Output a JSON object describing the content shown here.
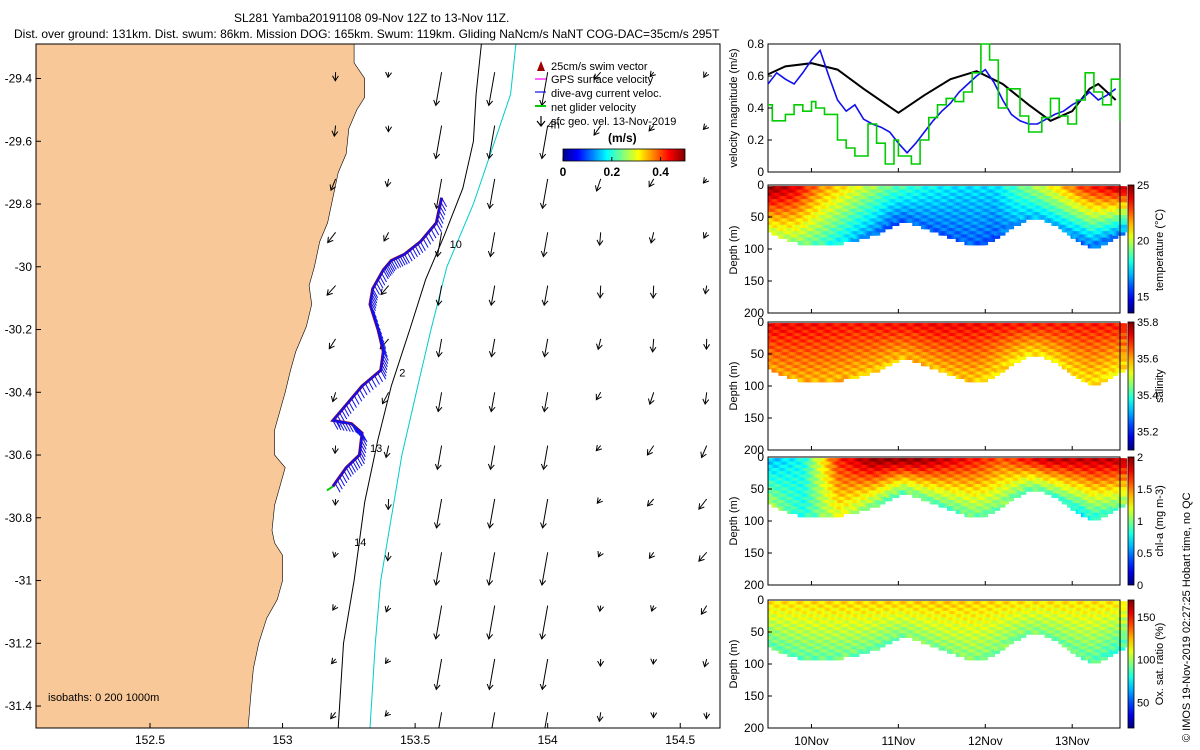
{
  "title": {
    "line1": "SL281 Yamba20191108 09-Nov 12Z to 13-Nov 11Z.",
    "line2": "Dist. over ground: 131km. Dist. swum: 86km. Mission DOG: 165km. Swum: 119km. Gliding NaNcm/s NaNT COG-DAC=35cm/s 295T"
  },
  "colors": {
    "land": "#f8c898",
    "glider_track": "#1010ee",
    "swim_vector": "#a00000",
    "gps_velocity": "#ff00ff",
    "net_velocity": "#00cc00",
    "isobath_200": "#000000",
    "isobath_1000": "#00cccc"
  },
  "icons": {
    "geo_arrow": "arrow-icon"
  },
  "chart_data": [
    {
      "id": "map",
      "type": "map",
      "xlim": [
        152.07,
        154.65
      ],
      "ylim": [
        -31.47,
        -29.29
      ],
      "xticks": [
        152.5,
        153,
        153.5,
        154,
        154.5
      ],
      "xtick_labels": [
        "152.5",
        "153",
        "153.5",
        "154",
        "154.5"
      ],
      "yticks": [
        -29.4,
        -29.6,
        -29.8,
        -30,
        -30.2,
        -30.4,
        -30.6,
        -30.8,
        -31,
        -31.2,
        -31.4
      ],
      "ytick_labels": [
        "-29.4",
        "-29.6",
        "-29.8",
        "-30",
        "-30.2",
        "-30.4",
        "-30.6",
        "-30.8",
        "-31",
        "-31.2",
        "-31.4"
      ],
      "legend": [
        {
          "label": "25cm/s swim vector",
          "kind": "swim"
        },
        {
          "label": "GPS surface velocity",
          "kind": "gps"
        },
        {
          "label": "dive-avg current veloc.",
          "kind": "dac"
        },
        {
          "label": "net glider velocity",
          "kind": "net"
        },
        {
          "label": "sfc geo. vel. 13-Nov-2019",
          "kind": "geo"
        }
      ],
      "colorbar": {
        "unit": "(m/s)",
        "ticks": [
          0,
          0.2,
          0.4
        ],
        "tick_labels": [
          "0",
          "0.2",
          "0.4"
        ],
        "range": [
          0,
          0.5
        ]
      },
      "isobaths_label": "isobaths: 0   200   1000m",
      "day_labels": [
        {
          "text": "4h",
          "lon": 154.0,
          "lat": -29.56
        },
        {
          "text": "10",
          "lon": 153.63,
          "lat": -29.94
        },
        {
          "text": "2",
          "lon": 153.44,
          "lat": -30.35
        },
        {
          "text": "13",
          "lon": 153.33,
          "lat": -30.59
        },
        {
          "text": "14",
          "lon": 153.27,
          "lat": -30.89
        }
      ],
      "track": [
        [
          153.6,
          -29.78
        ],
        [
          153.58,
          -29.86
        ],
        [
          153.52,
          -29.92
        ],
        [
          153.46,
          -29.96
        ],
        [
          153.41,
          -29.98
        ],
        [
          153.38,
          -30.01
        ],
        [
          153.34,
          -30.07
        ],
        [
          153.33,
          -30.12
        ],
        [
          153.36,
          -30.2
        ],
        [
          153.38,
          -30.27
        ],
        [
          153.37,
          -30.33
        ],
        [
          153.3,
          -30.38
        ],
        [
          153.24,
          -30.44
        ],
        [
          153.19,
          -30.49
        ],
        [
          153.26,
          -30.5
        ],
        [
          153.3,
          -30.53
        ],
        [
          153.29,
          -30.6
        ],
        [
          153.24,
          -30.64
        ],
        [
          153.19,
          -30.7
        ]
      ],
      "iso200": [
        [
          153.75,
          -29.29
        ],
        [
          153.73,
          -29.45
        ],
        [
          153.72,
          -29.6
        ],
        [
          153.68,
          -29.75
        ],
        [
          153.61,
          -29.9
        ],
        [
          153.54,
          -30.04
        ],
        [
          153.48,
          -30.2
        ],
        [
          153.41,
          -30.38
        ],
        [
          153.36,
          -30.55
        ],
        [
          153.31,
          -30.75
        ],
        [
          153.27,
          -31.0
        ],
        [
          153.23,
          -31.2
        ],
        [
          153.21,
          -31.47
        ]
      ],
      "iso1000": [
        [
          153.88,
          -29.29
        ],
        [
          153.86,
          -29.45
        ],
        [
          153.8,
          -29.6
        ],
        [
          153.72,
          -29.8
        ],
        [
          153.62,
          -30.0
        ],
        [
          153.56,
          -30.2
        ],
        [
          153.51,
          -30.38
        ],
        [
          153.45,
          -30.6
        ],
        [
          153.41,
          -30.8
        ],
        [
          153.37,
          -31.0
        ],
        [
          153.35,
          -31.2
        ],
        [
          153.33,
          -31.47
        ]
      ],
      "coast": [
        [
          152.07,
          -29.29
        ],
        [
          153.27,
          -29.29
        ],
        [
          153.27,
          -29.35
        ],
        [
          153.31,
          -29.4
        ],
        [
          153.31,
          -29.46
        ],
        [
          153.28,
          -29.5
        ],
        [
          153.25,
          -29.56
        ],
        [
          153.24,
          -29.64
        ],
        [
          153.21,
          -29.7
        ],
        [
          153.19,
          -29.78
        ],
        [
          153.17,
          -29.86
        ],
        [
          153.14,
          -29.92
        ],
        [
          153.12,
          -30.0
        ],
        [
          153.1,
          -30.06
        ],
        [
          153.11,
          -30.12
        ],
        [
          153.09,
          -30.19
        ],
        [
          153.05,
          -30.27
        ],
        [
          153.03,
          -30.33
        ],
        [
          153.01,
          -30.4
        ],
        [
          152.99,
          -30.46
        ],
        [
          152.97,
          -30.52
        ],
        [
          152.97,
          -30.6
        ],
        [
          153.01,
          -30.64
        ],
        [
          152.99,
          -30.7
        ],
        [
          152.97,
          -30.76
        ],
        [
          152.96,
          -30.84
        ],
        [
          152.97,
          -30.88
        ],
        [
          153.0,
          -30.92
        ],
        [
          153.0,
          -31.0
        ],
        [
          152.98,
          -31.06
        ],
        [
          152.94,
          -31.12
        ],
        [
          152.91,
          -31.2
        ],
        [
          152.89,
          -31.28
        ],
        [
          152.88,
          -31.37
        ],
        [
          152.87,
          -31.47
        ],
        [
          152.07,
          -31.47
        ]
      ]
    },
    {
      "id": "velocity",
      "type": "line",
      "ylabel": "velocity magnitude (m/s)",
      "ylim": [
        0,
        0.8
      ],
      "yticks": [
        0,
        0.2,
        0.4,
        0.6,
        0.8
      ],
      "ytick_labels": [
        "0",
        "0.2",
        "0.4",
        "0.6",
        "0.8"
      ],
      "xlim": [
        9.5,
        13.55
      ],
      "series": [
        {
          "name": "black",
          "color": "#000000",
          "x": [
            9.5,
            9.7,
            10.0,
            10.3,
            10.6,
            11.0,
            11.3,
            11.6,
            11.9,
            12.2,
            12.5,
            12.75,
            13.0,
            13.2,
            13.3,
            13.5
          ],
          "y": [
            0.61,
            0.66,
            0.68,
            0.64,
            0.52,
            0.37,
            0.48,
            0.58,
            0.63,
            0.55,
            0.42,
            0.32,
            0.38,
            0.52,
            0.55,
            0.45
          ]
        },
        {
          "name": "blue",
          "color": "#1010ee",
          "x": [
            9.5,
            9.6,
            9.7,
            9.8,
            9.9,
            10.0,
            10.1,
            10.2,
            10.3,
            10.4,
            10.5,
            10.6,
            10.7,
            10.8,
            10.9,
            11.0,
            11.1,
            11.2,
            11.3,
            11.4,
            11.5,
            11.6,
            11.7,
            11.8,
            11.9,
            12.0,
            12.1,
            12.2,
            12.3,
            12.4,
            12.5,
            12.6,
            12.7,
            12.8,
            12.9,
            13.0,
            13.1,
            13.2,
            13.3,
            13.4,
            13.5
          ],
          "y": [
            0.55,
            0.62,
            0.58,
            0.55,
            0.62,
            0.7,
            0.76,
            0.6,
            0.45,
            0.38,
            0.42,
            0.33,
            0.3,
            0.28,
            0.25,
            0.18,
            0.12,
            0.18,
            0.25,
            0.32,
            0.38,
            0.43,
            0.5,
            0.55,
            0.6,
            0.64,
            0.56,
            0.45,
            0.36,
            0.32,
            0.3,
            0.3,
            0.33,
            0.36,
            0.38,
            0.42,
            0.45,
            0.5,
            0.45,
            0.48,
            0.52
          ]
        },
        {
          "name": "green",
          "step": true,
          "color": "#00cc00",
          "x": [
            9.5,
            9.55,
            9.7,
            9.8,
            9.9,
            10.0,
            10.05,
            10.15,
            10.3,
            10.4,
            10.5,
            10.65,
            10.75,
            10.85,
            10.95,
            11.0,
            11.15,
            11.25,
            11.35,
            11.45,
            11.55,
            11.65,
            11.75,
            11.85,
            11.95,
            12.05,
            12.15,
            12.25,
            12.4,
            12.5,
            12.65,
            12.75,
            12.85,
            12.95,
            13.05,
            13.15,
            13.25,
            13.35,
            13.45,
            13.55
          ],
          "y": [
            0.42,
            0.32,
            0.36,
            0.42,
            0.38,
            0.44,
            0.4,
            0.36,
            0.2,
            0.15,
            0.1,
            0.3,
            0.18,
            0.05,
            0.2,
            0.1,
            0.05,
            0.2,
            0.34,
            0.42,
            0.46,
            0.44,
            0.5,
            0.62,
            0.8,
            0.7,
            0.4,
            0.52,
            0.35,
            0.25,
            0.34,
            0.46,
            0.35,
            0.3,
            0.45,
            0.62,
            0.5,
            0.42,
            0.58,
            0.32
          ]
        }
      ]
    },
    {
      "id": "temperature",
      "type": "heatmap",
      "ylabel": "Depth (m)",
      "ylim": [
        0,
        200
      ],
      "yticks": [
        0,
        50,
        100,
        150,
        200
      ],
      "ytick_labels": [
        "0",
        "50",
        "100",
        "150",
        "200"
      ],
      "cbar_label": "temperature (°C)",
      "crange": [
        13.5,
        25
      ],
      "cticks": [
        15,
        20,
        25
      ],
      "ctick_labels": [
        "15",
        "20",
        "25"
      ],
      "surface": [
        [
          9.5,
          25
        ],
        [
          9.8,
          24
        ],
        [
          10.1,
          22
        ],
        [
          10.5,
          20.5
        ],
        [
          10.9,
          19
        ],
        [
          11.3,
          18
        ],
        [
          11.7,
          17.5
        ],
        [
          12.1,
          17.5
        ],
        [
          12.4,
          19
        ],
        [
          12.8,
          21
        ],
        [
          13.1,
          23
        ],
        [
          13.55,
          24.5
        ]
      ],
      "bottom": [
        [
          9.5,
          20
        ],
        [
          9.8,
          19.5
        ],
        [
          10.1,
          18.5
        ],
        [
          10.5,
          17
        ],
        [
          10.9,
          16
        ],
        [
          11.3,
          16
        ],
        [
          11.7,
          16
        ],
        [
          12.1,
          16
        ],
        [
          12.4,
          17
        ],
        [
          12.8,
          17
        ],
        [
          13.1,
          16
        ],
        [
          13.55,
          16.5
        ]
      ]
    },
    {
      "id": "salinity",
      "type": "heatmap",
      "ylabel": "Depth (m)",
      "ylim": [
        0,
        200
      ],
      "yticks": [
        0,
        50,
        100,
        150,
        200
      ],
      "ytick_labels": [
        "0",
        "50",
        "100",
        "150",
        "200"
      ],
      "cbar_label": "salinity",
      "crange": [
        35.1,
        35.8
      ],
      "cticks": [
        35.2,
        35.4,
        35.6,
        35.8
      ],
      "ctick_labels": [
        "35.2",
        "35.4",
        "35.6",
        "35.8"
      ],
      "surface": [
        [
          9.5,
          35.72
        ],
        [
          10.5,
          35.7
        ],
        [
          11.5,
          35.72
        ],
        [
          12.5,
          35.7
        ],
        [
          13.55,
          35.7
        ]
      ],
      "bottom": [
        [
          9.5,
          35.6
        ],
        [
          10.5,
          35.58
        ],
        [
          11.5,
          35.58
        ],
        [
          12.5,
          35.55
        ],
        [
          13.55,
          35.55
        ]
      ]
    },
    {
      "id": "chla",
      "type": "heatmap",
      "ylabel": "Depth (m)",
      "ylim": [
        0,
        200
      ],
      "yticks": [
        0,
        50,
        100,
        150,
        200
      ],
      "ytick_labels": [
        "0",
        "50",
        "100",
        "150",
        "200"
      ],
      "cbar_label": "chl-a (mg m-3)",
      "crange": [
        0,
        2
      ],
      "cticks": [
        0,
        0.5,
        1,
        1.5,
        2
      ],
      "ctick_labels": [
        "0",
        "0.5",
        "1",
        "1.5",
        "2"
      ],
      "surface": [
        [
          9.5,
          0.6
        ],
        [
          9.9,
          0.8
        ],
        [
          10.3,
          1.7
        ],
        [
          10.7,
          2
        ],
        [
          11.2,
          2
        ],
        [
          11.7,
          1.8
        ],
        [
          12.2,
          1.6
        ],
        [
          12.7,
          1.9
        ],
        [
          13.1,
          1.9
        ],
        [
          13.55,
          1.9
        ]
      ],
      "bottom": [
        [
          9.5,
          1.1
        ],
        [
          9.9,
          0.8
        ],
        [
          10.3,
          1.2
        ],
        [
          10.7,
          1.0
        ],
        [
          11.2,
          0.9
        ],
        [
          11.7,
          0.9
        ],
        [
          12.2,
          1.0
        ],
        [
          12.7,
          0.9
        ],
        [
          13.1,
          0.7
        ],
        [
          13.55,
          1.0
        ]
      ]
    },
    {
      "id": "oxygen",
      "type": "heatmap",
      "ylabel": "Depth (m)",
      "ylim": [
        0,
        200
      ],
      "yticks": [
        0,
        50,
        100,
        150,
        200
      ],
      "ytick_labels": [
        "0",
        "50",
        "100",
        "150",
        "200"
      ],
      "cbar_label": "Ox. sat. ratio (%)",
      "crange": [
        20,
        170
      ],
      "cticks": [
        50,
        100,
        150
      ],
      "ctick_labels": [
        "50",
        "100",
        "150"
      ],
      "surface": [
        [
          9.5,
          118
        ],
        [
          10.5,
          120
        ],
        [
          11.5,
          122
        ],
        [
          12.5,
          118
        ],
        [
          13.55,
          118
        ]
      ],
      "bottom": [
        [
          9.5,
          88
        ],
        [
          10.5,
          92
        ],
        [
          11.5,
          95
        ],
        [
          12.5,
          95
        ],
        [
          13.55,
          85
        ]
      ]
    }
  ],
  "sections": {
    "xticks": [
      10,
      11,
      12,
      13
    ],
    "xtick_labels": [
      "10Nov",
      "11Nov",
      "12Nov",
      "13Nov"
    ],
    "xlim": [
      9.5,
      13.55
    ],
    "depth_profile": [
      [
        9.5,
        70
      ],
      [
        9.65,
        80
      ],
      [
        9.85,
        88
      ],
      [
        10.1,
        90
      ],
      [
        10.4,
        85
      ],
      [
        10.7,
        72
      ],
      [
        10.9,
        58
      ],
      [
        11.05,
        52
      ],
      [
        11.3,
        65
      ],
      [
        11.6,
        80
      ],
      [
        11.85,
        92
      ],
      [
        12.0,
        85
      ],
      [
        12.25,
        62
      ],
      [
        12.45,
        48
      ],
      [
        12.6,
        48
      ],
      [
        12.8,
        60
      ],
      [
        13.0,
        80
      ],
      [
        13.2,
        95
      ],
      [
        13.35,
        85
      ],
      [
        13.55,
        70
      ]
    ],
    "cast_times": [
      9.52,
      9.61,
      9.7,
      9.79,
      9.88,
      9.97,
      10.06,
      10.15,
      10.24,
      10.33,
      10.42,
      10.51,
      10.6,
      10.69,
      10.78,
      10.87,
      10.96,
      11.05,
      11.14,
      11.23,
      11.32,
      11.41,
      11.5,
      11.59,
      11.68,
      11.77,
      11.86,
      11.95,
      12.04,
      12.13,
      12.22,
      12.31,
      12.4,
      12.49,
      12.58,
      12.67,
      12.76,
      12.85,
      12.94,
      13.03,
      13.12,
      13.21,
      13.3,
      13.39,
      13.48
    ]
  },
  "side_note": "© IMOS 19-Nov-2019 02:27:25 Hobart time, no QC"
}
